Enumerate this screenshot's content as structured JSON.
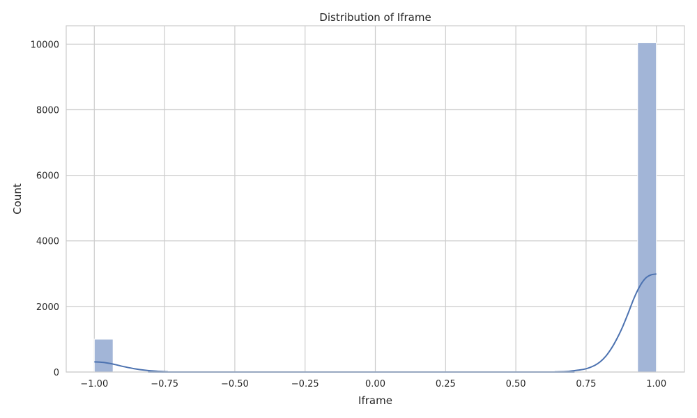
{
  "chart_data": {
    "type": "bar",
    "title": "Distribution of Iframe",
    "xlabel": "Iframe",
    "ylabel": "Count",
    "xlim": [
      -1.1,
      1.1
    ],
    "ylim": [
      0,
      10560
    ],
    "x_ticks": [
      -1.0,
      -0.75,
      -0.5,
      -0.25,
      0.0,
      0.25,
      0.5,
      0.75,
      1.0
    ],
    "x_tick_labels": [
      "−1.00",
      "−0.75",
      "−0.50",
      "−0.25",
      "0.00",
      "0.25",
      "0.50",
      "0.75",
      "1.00"
    ],
    "y_ticks": [
      0,
      2000,
      4000,
      6000,
      8000,
      10000
    ],
    "y_tick_labels": [
      "0",
      "2000",
      "4000",
      "6000",
      "8000",
      "10000"
    ],
    "grid": true,
    "bars": [
      {
        "x0": -1.0,
        "x1": -0.9333,
        "count": 1000
      },
      {
        "x0": 0.9333,
        "x1": 1.0,
        "count": 10040
      }
    ],
    "kde": {
      "x": [
        -1.0,
        -0.97,
        -0.94,
        -0.9,
        -0.86,
        -0.82,
        -0.78,
        -0.74,
        -0.7,
        0.6,
        0.64,
        0.68,
        0.72,
        0.75,
        0.78,
        0.8,
        0.82,
        0.84,
        0.86,
        0.88,
        0.9,
        0.92,
        0.94,
        0.96,
        0.98,
        1.0
      ],
      "y": [
        310,
        295,
        255,
        175,
        105,
        55,
        25,
        8,
        0,
        0,
        5,
        15,
        55,
        100,
        200,
        310,
        480,
        720,
        1020,
        1380,
        1800,
        2240,
        2600,
        2850,
        2960,
        2990
      ]
    },
    "colors": {
      "bar_fill": "#a2b5d7",
      "bar_stroke": "#ffffff",
      "kde_line": "#4c72b0",
      "grid": "#cccccc",
      "axes_edge": "#cccccc",
      "text": "#262626"
    }
  }
}
